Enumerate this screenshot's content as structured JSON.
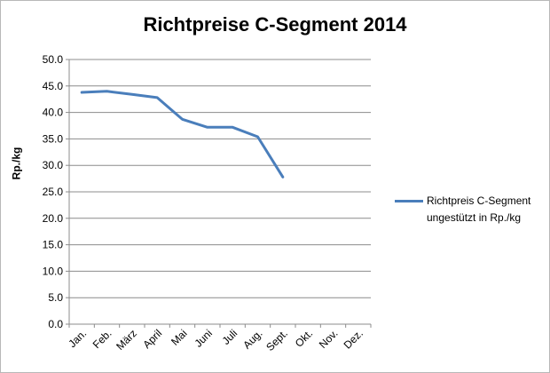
{
  "chart_data": {
    "type": "line",
    "title": "Richtpreise C-Segment 2014",
    "xlabel": "",
    "ylabel": "Rp./kg",
    "categories": [
      "Jan.",
      "Feb.",
      "März",
      "April",
      "Mai",
      "Juni",
      "Juli",
      "Aug.",
      "Sept.",
      "Okt.",
      "Nov.",
      "Dez."
    ],
    "series": [
      {
        "name": "Richtpreis C-Segment ungestützt in Rp./kg",
        "values": [
          43.8,
          44.0,
          43.4,
          42.8,
          38.7,
          37.2,
          37.2,
          35.4,
          27.8,
          null,
          null,
          null
        ],
        "color": "#4a7ebb"
      }
    ],
    "ylim": [
      0,
      50
    ],
    "yticks": [
      "0.0",
      "5.0",
      "10.0",
      "15.0",
      "20.0",
      "25.0",
      "30.0",
      "35.0",
      "40.0",
      "45.0",
      "50.0"
    ],
    "grid": true,
    "legend_position": "right"
  }
}
